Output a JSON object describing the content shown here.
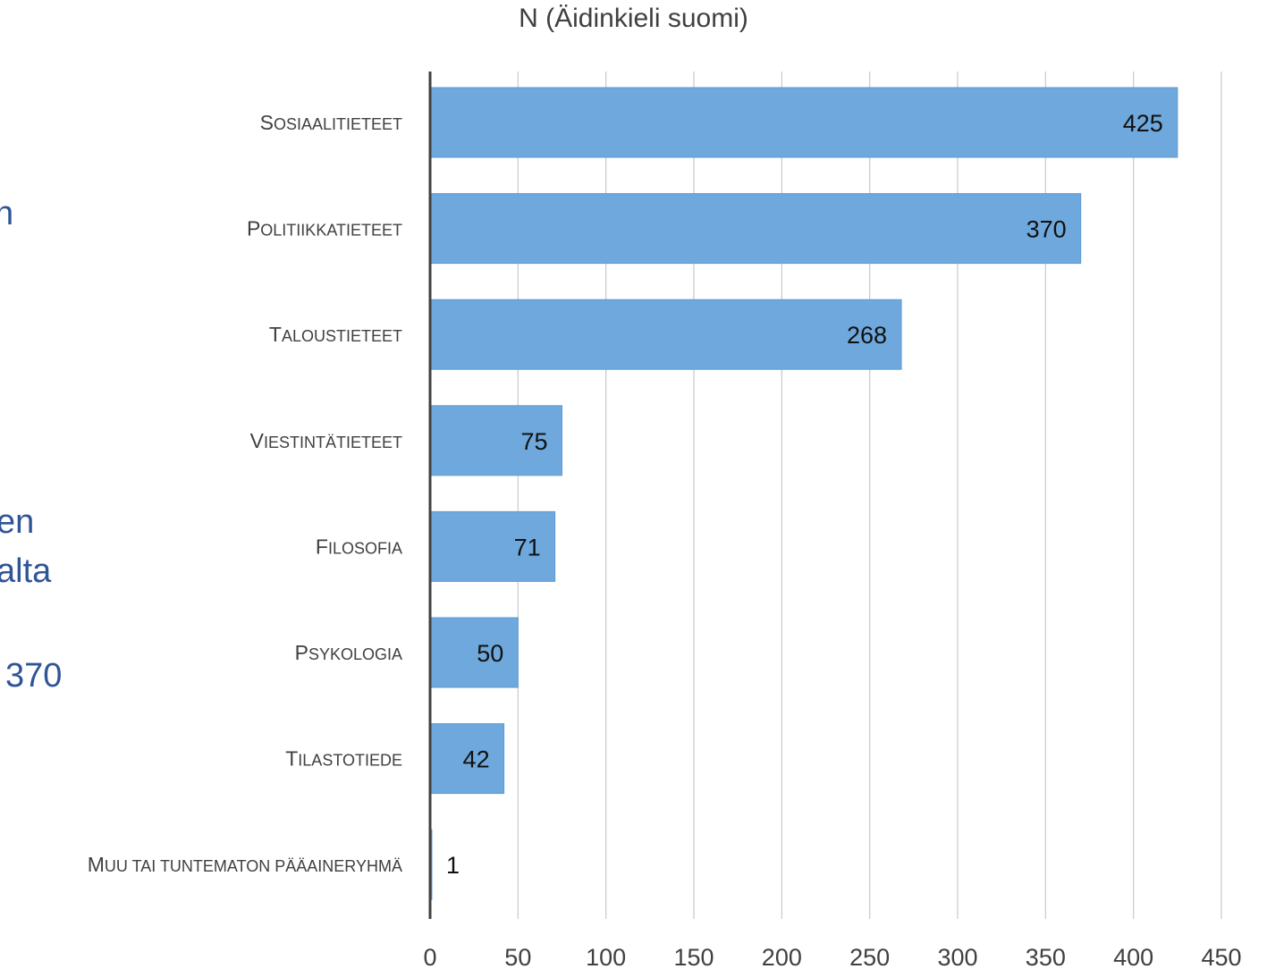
{
  "side_text": [
    "n",
    ".",
    "en",
    "alta",
    "370"
  ],
  "chart_data": {
    "type": "bar",
    "orientation": "horizontal",
    "title": "N (Äidinkieli suomi)",
    "categories": [
      "Sosiaalitieteet",
      "Politiikkatieteet",
      "Taloustieteet",
      "Viestintätieteet",
      "Filosofia",
      "Psykologia",
      "Tilastotiede",
      "Muu tai tuntematon pääaineryhmä"
    ],
    "values": [
      425,
      370,
      268,
      75,
      71,
      50,
      42,
      1
    ],
    "xlim": [
      0,
      450
    ],
    "xticks": [
      0,
      50,
      100,
      150,
      200,
      250,
      300,
      350,
      400,
      450
    ],
    "grid": "vertical",
    "data_labels": true,
    "bar_color": "#6FA8DC",
    "bar_edge_color": "#5B9BD5",
    "axis_color": "#404040",
    "grid_color": "#C8C8C8",
    "label_case": "small-caps"
  }
}
